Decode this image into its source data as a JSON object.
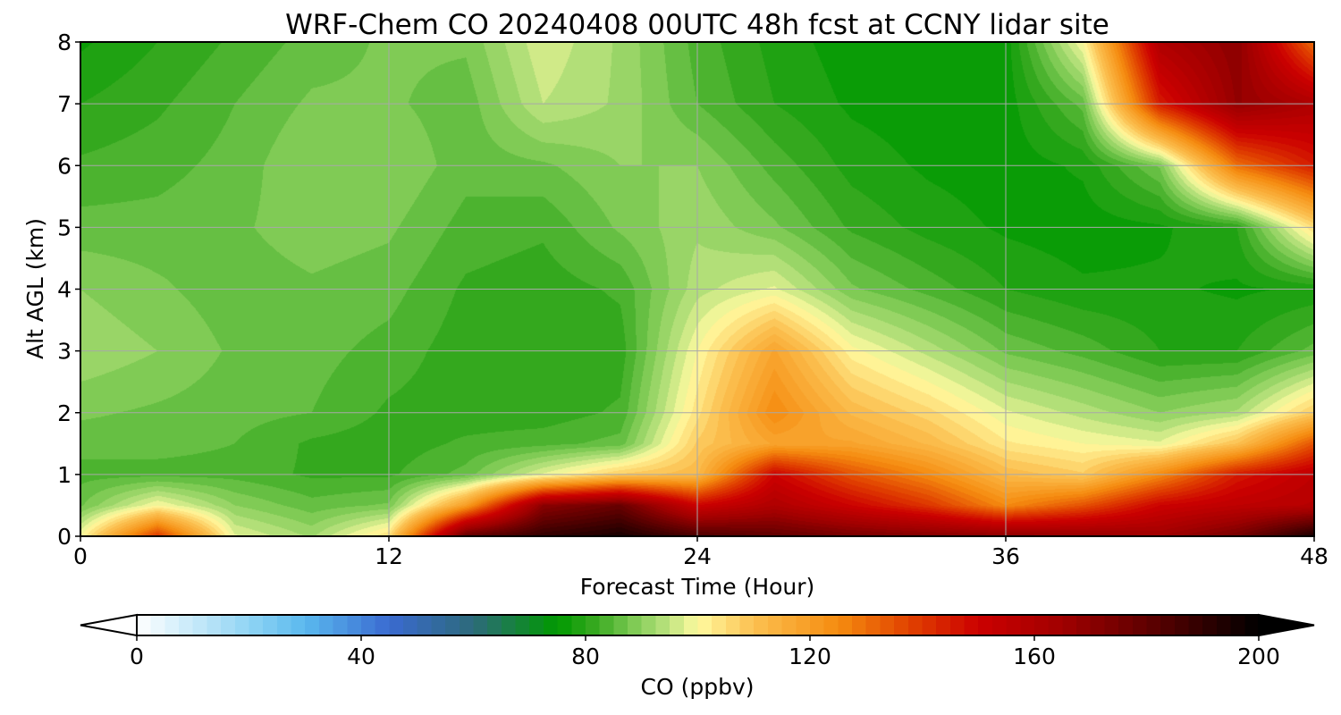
{
  "chart_data": {
    "type": "heatmap",
    "subtype": "filled-contour",
    "title": "WRF-Chem CO  20240408 00UTC 48h fcst at CCNY lidar site",
    "xlabel": "Forecast Time (Hour)",
    "ylabel": "Alt AGL (km)",
    "xlim": [
      0,
      48
    ],
    "ylim": [
      0,
      8
    ],
    "xticks": [
      0,
      12,
      24,
      36,
      48
    ],
    "yticks": [
      0,
      1,
      2,
      3,
      4,
      5,
      6,
      7,
      8
    ],
    "grid": true,
    "colorbar": {
      "label": "CO  (ppbv)",
      "orientation": "horizontal",
      "placement": "bottom",
      "extend": "both",
      "range": [
        0,
        200
      ],
      "ticks": [
        0,
        40,
        80,
        120,
        160,
        200
      ],
      "colormap": [
        {
          "value": 0,
          "color": "#ffffff"
        },
        {
          "value": 20,
          "color": "#90d4f4"
        },
        {
          "value": 30,
          "color": "#5ab8ee"
        },
        {
          "value": 45,
          "color": "#3a6ad0"
        },
        {
          "value": 60,
          "color": "#2d6a7a"
        },
        {
          "value": 75,
          "color": "#009900"
        },
        {
          "value": 82,
          "color": "#3aaa22"
        },
        {
          "value": 88,
          "color": "#78c850"
        },
        {
          "value": 94,
          "color": "#b4e07a"
        },
        {
          "value": 100,
          "color": "#fffaa0"
        },
        {
          "value": 110,
          "color": "#fcc050"
        },
        {
          "value": 125,
          "color": "#f58c10"
        },
        {
          "value": 138,
          "color": "#e04000"
        },
        {
          "value": 150,
          "color": "#cc0000"
        },
        {
          "value": 165,
          "color": "#a00000"
        },
        {
          "value": 180,
          "color": "#600000"
        },
        {
          "value": 200,
          "color": "#000000"
        }
      ]
    },
    "x": [
      0,
      3,
      6,
      9,
      12,
      15,
      18,
      21,
      24,
      27,
      30,
      33,
      36,
      39,
      42,
      45,
      48
    ],
    "y": [
      0,
      0.5,
      1,
      1.5,
      2,
      3,
      4,
      5,
      6,
      7,
      8
    ],
    "z": [
      [
        100,
        140,
        98,
        92,
        105,
        180,
        190,
        195,
        185,
        180,
        175,
        172,
        170,
        168,
        165,
        175,
        195
      ],
      [
        87,
        100,
        90,
        86,
        88,
        120,
        170,
        178,
        150,
        160,
        150,
        140,
        125,
        135,
        150,
        155,
        158
      ],
      [
        84,
        84,
        84,
        82,
        82,
        86,
        98,
        108,
        112,
        150,
        135,
        125,
        112,
        108,
        125,
        145,
        155
      ],
      [
        86,
        86,
        85,
        82,
        81,
        83,
        84,
        86,
        108,
        118,
        118,
        112,
        103,
        100,
        98,
        110,
        135
      ],
      [
        88,
        87,
        86,
        85,
        82,
        81,
        81,
        83,
        104,
        125,
        112,
        106,
        98,
        94,
        90,
        93,
        108
      ],
      [
        92,
        90,
        87,
        86,
        84,
        81,
        80,
        81,
        100,
        118,
        101,
        94,
        87,
        84,
        80,
        80,
        86
      ],
      [
        90,
        88,
        86,
        87,
        86,
        82,
        81,
        83,
        94,
        98,
        88,
        84,
        80,
        78,
        78,
        77,
        78
      ],
      [
        86,
        86,
        87,
        89,
        88,
        84,
        83,
        88,
        92,
        88,
        82,
        79,
        77,
        76,
        77,
        80,
        105
      ],
      [
        83,
        84,
        86,
        90,
        90,
        86,
        87,
        90,
        90,
        84,
        79,
        77,
        76,
        78,
        88,
        130,
        145
      ],
      [
        80,
        82,
        85,
        88,
        88,
        86,
        95,
        92,
        85,
        80,
        77,
        76,
        76,
        86,
        145,
        168,
        160
      ],
      [
        77,
        80,
        83,
        86,
        88,
        88,
        97,
        92,
        84,
        79,
        76,
        76,
        76,
        100,
        160,
        170,
        130
      ]
    ]
  }
}
